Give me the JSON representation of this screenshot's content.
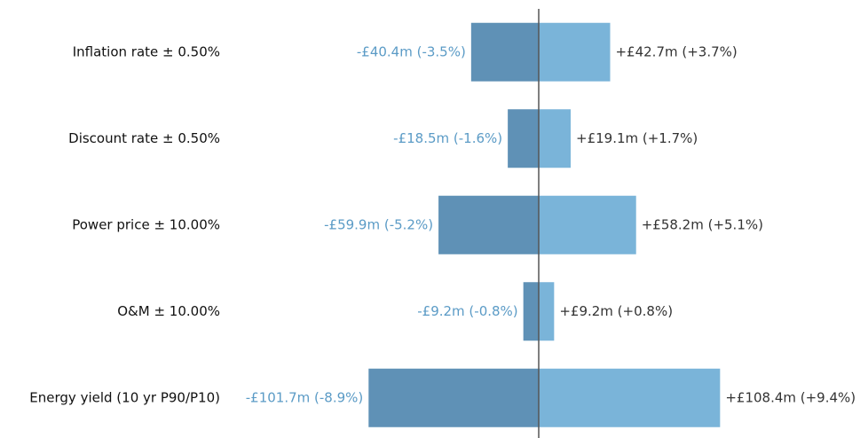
{
  "chart_data": {
    "type": "tornado",
    "categories": [
      "Inflation rate  ± 0.50%",
      "Discount rate ± 0.50%",
      "Power price ± 10.00%",
      "O&M ± 10.00%",
      "Energy yield (10 yr P90/P10)"
    ],
    "series": [
      {
        "color": "#5f91b6",
        "label_color": "#5b9bc6",
        "values": [
          -40.4,
          -18.5,
          -59.9,
          -9.2,
          -101.7
        ],
        "value_labels": [
          "-£40.4m (-3.5%)",
          "-£18.5m (-1.6%)",
          "-£59.9m (-5.2%)",
          "-£9.2m (-0.8%)",
          "-£101.7m (-8.9%)"
        ]
      },
      {
        "color": "#7ab4d9",
        "label_color": "#333333",
        "values": [
          42.7,
          19.1,
          58.2,
          9.2,
          108.4
        ],
        "value_labels": [
          "+£42.7m (+3.7%)",
          "+£19.1m (+1.7%)",
          "+£58.2m (+5.1%)",
          "+£9.2m (+0.8%)",
          "+£108.4m (+9.4%)"
        ]
      }
    ]
  }
}
